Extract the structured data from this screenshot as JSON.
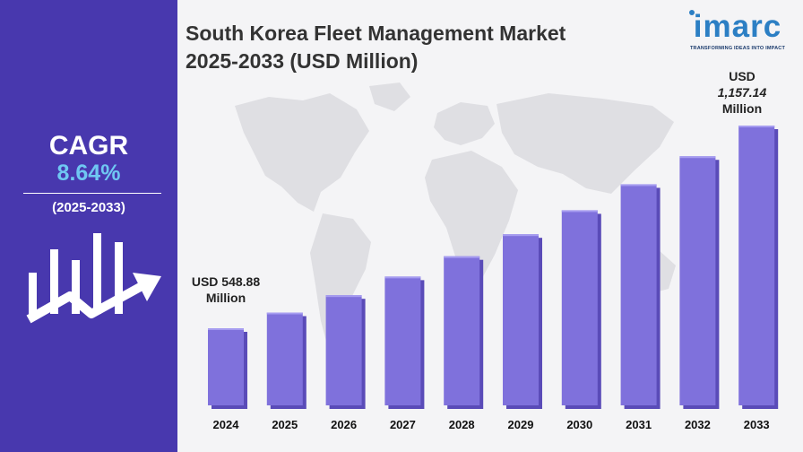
{
  "title": {
    "line1": "South Korea Fleet Management Market",
    "line2": "2025-2033 (USD Million)"
  },
  "logo": {
    "name": "imarc",
    "tagline": "TRANSFORMING IDEAS INTO IMPACT"
  },
  "cagr": {
    "label": "CAGR",
    "value": "8.64%",
    "period": "(2025-2033)"
  },
  "icons": {
    "growth": "bar-growth-arrow-icon",
    "background": "world-map"
  },
  "colors": {
    "panel": "#4838ae",
    "accent": "#6fc7f2",
    "bar": "#7f71dc",
    "bar_dark": "#5a4bb8",
    "bar_light": "#a69cf0"
  },
  "annotations": {
    "first": {
      "line1": "USD 548.88",
      "line2": "Million"
    },
    "last": {
      "line1": "USD",
      "line2": "1,157.14",
      "line3": "Million"
    }
  },
  "chart_data": {
    "type": "bar",
    "title": "South Korea Fleet Management Market 2025-2033 (USD Million)",
    "categories": [
      "2024",
      "2025",
      "2026",
      "2027",
      "2028",
      "2029",
      "2030",
      "2031",
      "2032",
      "2033"
    ],
    "values": [
      548.88,
      596,
      648,
      704,
      765,
      831,
      903,
      981,
      1065,
      1157.14
    ],
    "ylim": [
      0,
      1250
    ],
    "grid": false,
    "legend": "none"
  }
}
